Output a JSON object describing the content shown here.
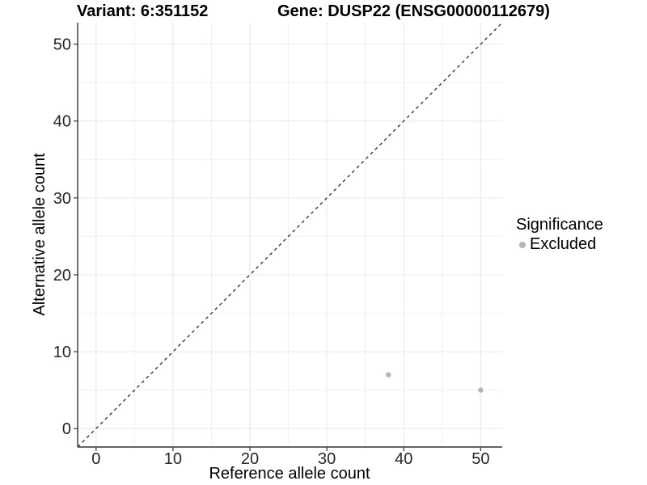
{
  "title": {
    "variant": "Variant: 6:351152",
    "gene": "Gene: DUSP22 (ENSG00000112679)"
  },
  "chart_data": {
    "type": "scatter",
    "title": "Variant: 6:351152   Gene: DUSP22 (ENSG00000112679)",
    "xlabel": "Reference allele count",
    "ylabel": "Alternative allele count",
    "xlim": [
      -2.4,
      52.8
    ],
    "ylim": [
      -2.4,
      52.8
    ],
    "x_ticks": [
      0,
      10,
      20,
      30,
      40,
      50
    ],
    "y_ticks": [
      0,
      10,
      20,
      30,
      40,
      50
    ],
    "x_minor_ticks": [
      5,
      15,
      25,
      35,
      45
    ],
    "y_minor_ticks": [
      5,
      15,
      25,
      35,
      45
    ],
    "grid": true,
    "series": [
      {
        "name": "Excluded",
        "color": "#b4b4b4",
        "points": [
          {
            "x": 38,
            "y": 7
          },
          {
            "x": 50,
            "y": 5
          }
        ]
      }
    ],
    "identity_line": {
      "type": "dashed",
      "equation": "y = x",
      "color": "#1a1a1a"
    },
    "legend": {
      "title": "Significance",
      "position": "right",
      "items": [
        {
          "label": "Excluded",
          "color": "#b4b4b4"
        }
      ]
    },
    "colors": {
      "point": "#b4b4b4",
      "grid_major": "#e8e8e8",
      "grid_minor": "#f1f1f1",
      "axis_line": "#333333",
      "background": "#ffffff"
    }
  }
}
